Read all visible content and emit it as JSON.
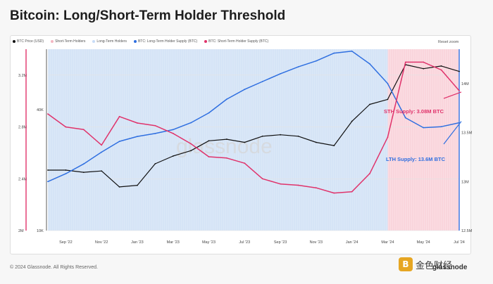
{
  "title": "Bitcoin: Long/Short-Term Holder Threshold",
  "legend": [
    {
      "label": "BTC Price (USD)",
      "color": "#111111"
    },
    {
      "label": "Short-Term Holders",
      "color": "#f4b6c2"
    },
    {
      "label": "Long-Term Holders",
      "color": "#c7dcf7"
    },
    {
      "label": "BTC: Long-Term Holder Supply (BTC)",
      "color": "#2f6fe0"
    },
    {
      "label": "BTC: Short-Term Holder Supply (BTC)",
      "color": "#e0336b"
    }
  ],
  "reset_zoom": "Reset zoom",
  "copyright": "© 2024 Glassnode. All Rights Reserved.",
  "brand": "glassnode",
  "overlay_brand": "金色财经",
  "watermark": "glassnode",
  "chart_data": {
    "type": "line",
    "x_tick_labels": [
      "Sep '22",
      "Nov '22",
      "Jan '23",
      "Mar '23",
      "May '23",
      "Jul '23",
      "Sep '23",
      "Nov '23",
      "Jan '24",
      "Mar '24",
      "May '24",
      "Jul '24"
    ],
    "x_range": [
      0,
      23
    ],
    "sth_axis": {
      "ticks": [
        "3.2M",
        "2.8M",
        "2.4M",
        "2M"
      ],
      "values": [
        3200000,
        2800000,
        2400000,
        2000000
      ],
      "range": [
        2000000,
        3400000
      ]
    },
    "price_axis": {
      "ticks": [
        "40K",
        "10K"
      ],
      "values": [
        40000,
        10000
      ],
      "scale": "log",
      "range": [
        10000,
        80000
      ]
    },
    "lth_axis": {
      "ticks": [
        "14M",
        "13.5M",
        "13M",
        "12.5M"
      ],
      "values": [
        14000000,
        13500000,
        13000000,
        12500000
      ],
      "range": [
        12500000,
        14350000
      ]
    },
    "regime_split_index": 19,
    "series": [
      {
        "name": "BTC Price (USD)",
        "axis": "price",
        "color": "#111111",
        "x": [
          0,
          1,
          2,
          3,
          4,
          5,
          6,
          7,
          8,
          9,
          10,
          11,
          12,
          13,
          14,
          15,
          16,
          17,
          18,
          19,
          20,
          21,
          22,
          23
        ],
        "values": [
          20000,
          20000,
          19500,
          19800,
          16500,
          16800,
          21500,
          23500,
          25000,
          28000,
          28500,
          27500,
          29500,
          30000,
          29500,
          27500,
          26500,
          35000,
          42500,
          45000,
          67000,
          64000,
          66000,
          62000
        ]
      },
      {
        "name": "BTC: Long-Term Holder Supply (BTC)",
        "axis": "lth",
        "color": "#2f6fe0",
        "x": [
          0,
          1,
          2,
          3,
          4,
          5,
          6,
          7,
          8,
          9,
          10,
          11,
          12,
          13,
          14,
          15,
          16,
          17,
          18,
          19,
          20,
          21,
          22,
          23
        ],
        "values": [
          13000000,
          13080000,
          13180000,
          13300000,
          13410000,
          13460000,
          13490000,
          13530000,
          13600000,
          13700000,
          13840000,
          13940000,
          14020000,
          14100000,
          14170000,
          14230000,
          14310000,
          14330000,
          14200000,
          14000000,
          13650000,
          13550000,
          13560000,
          13600000
        ]
      },
      {
        "name": "BTC: Short-Term Holder Supply (BTC)",
        "axis": "sth",
        "color": "#e0336b",
        "x": [
          0,
          1,
          2,
          3,
          4,
          5,
          6,
          7,
          8,
          9,
          10,
          11,
          12,
          13,
          14,
          15,
          16,
          17,
          18,
          19,
          20,
          21,
          22,
          23
        ],
        "values": [
          2900000,
          2800000,
          2780000,
          2660000,
          2880000,
          2830000,
          2810000,
          2750000,
          2670000,
          2570000,
          2560000,
          2520000,
          2400000,
          2360000,
          2350000,
          2330000,
          2290000,
          2300000,
          2440000,
          2720000,
          3300000,
          3300000,
          3240000,
          3080000
        ]
      }
    ],
    "annotations": [
      {
        "text": "STH Supply: 3.08M BTC",
        "color": "#e0336b"
      },
      {
        "text": "LTH Supply: 13.6M BTC",
        "color": "#2f6fe0"
      }
    ]
  }
}
